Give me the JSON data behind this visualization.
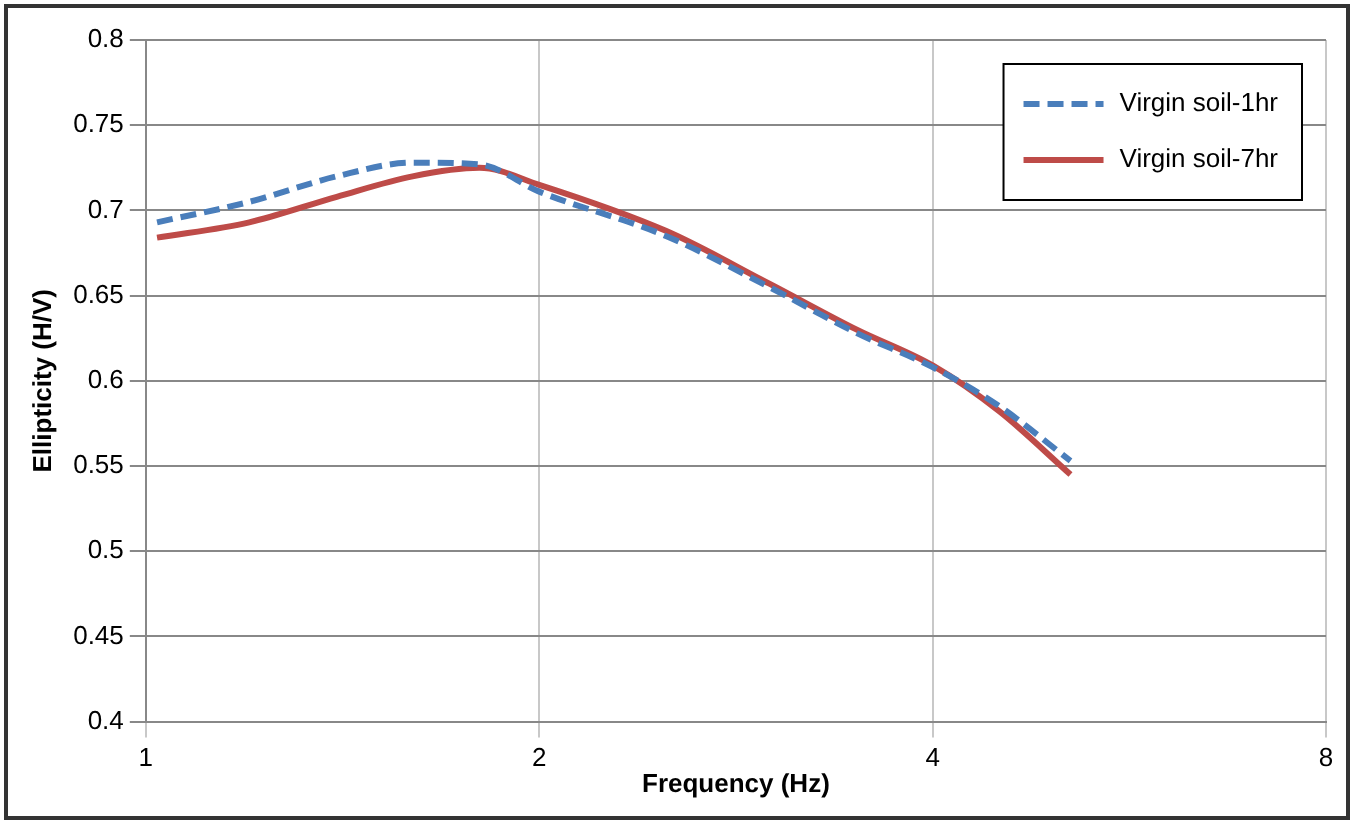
{
  "chart_data": {
    "type": "line",
    "xlabel": "Frequency (Hz)",
    "ylabel": "Ellipticity (H/V)",
    "log": "x",
    "xlim": [
      1,
      8
    ],
    "xticks": [
      1,
      2,
      4,
      8
    ],
    "ylim": [
      0.4,
      0.8
    ],
    "yticks": [
      0.4,
      0.45,
      0.5,
      0.55,
      0.6,
      0.65,
      0.7,
      0.75,
      0.8
    ],
    "grid": true,
    "legend": "top right",
    "marker": "none",
    "x": [
      1.02,
      1.2,
      1.4,
      1.6,
      1.8,
      2,
      2.5,
      3,
      3.5,
      4,
      4.5,
      5.1
    ],
    "series": [
      {
        "name": "Virgin soil-1hr",
        "color": "#4a7ebb",
        "line_style": "dashed",
        "values": [
          0.693,
          0.705,
          0.72,
          0.728,
          0.727,
          0.711,
          0.685,
          0.655,
          0.628,
          0.608,
          0.585,
          0.553
        ]
      },
      {
        "name": "Virgin soil-7hr",
        "color": "#be4b48",
        "line_style": "solid",
        "values": [
          0.684,
          0.693,
          0.708,
          0.72,
          0.725,
          0.715,
          0.688,
          0.657,
          0.63,
          0.609,
          0.582,
          0.545
        ]
      }
    ]
  }
}
